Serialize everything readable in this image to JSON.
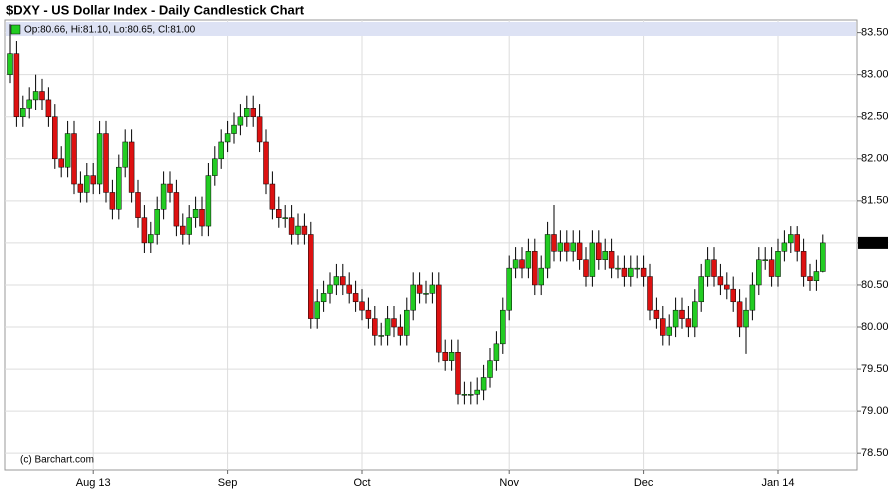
{
  "chart_data": {
    "type": "candlestick",
    "title": "$DXY - US Dollar Index - Daily Candlestick Chart",
    "ohlc_label": "Op:80.66, Hi:81.10, Lo:80.65, Cl:81.00",
    "credit": "(c) Barchart.com",
    "last_value_label": "81.00",
    "up_color": "#22cc22",
    "down_color": "#dd1111",
    "grid": true,
    "ylim": [
      78.3,
      83.65
    ],
    "yticks": [
      {
        "value": 78.5,
        "label": "78.50"
      },
      {
        "value": 79,
        "label": "79.00"
      },
      {
        "value": 79.5,
        "label": "79.50"
      },
      {
        "value": 80,
        "label": "80.00"
      },
      {
        "value": 80.5,
        "label": "80.50"
      },
      {
        "value": 81,
        "label": "81.00"
      },
      {
        "value": 81.5,
        "label": "81.50"
      },
      {
        "value": 82,
        "label": "82.00"
      },
      {
        "value": 82.5,
        "label": "82.50"
      },
      {
        "value": 83,
        "label": "83.00"
      },
      {
        "value": 83.5,
        "label": "83.50"
      }
    ],
    "categories": [
      null,
      null,
      null,
      null,
      null,
      null,
      null,
      null,
      null,
      null,
      null,
      null,
      null,
      "Aug 13",
      null,
      null,
      null,
      null,
      null,
      null,
      null,
      null,
      null,
      null,
      null,
      null,
      null,
      null,
      null,
      null,
      null,
      null,
      null,
      null,
      "Sep",
      null,
      null,
      null,
      null,
      null,
      null,
      null,
      null,
      null,
      null,
      null,
      null,
      null,
      null,
      null,
      null,
      null,
      null,
      null,
      null,
      "Oct",
      null,
      null,
      null,
      null,
      null,
      null,
      null,
      null,
      null,
      null,
      null,
      null,
      null,
      null,
      null,
      null,
      null,
      null,
      null,
      null,
      null,
      null,
      "Nov",
      null,
      null,
      null,
      null,
      null,
      null,
      null,
      null,
      null,
      null,
      null,
      null,
      null,
      null,
      null,
      null,
      null,
      null,
      null,
      null,
      "Dec",
      null,
      null,
      null,
      null,
      null,
      null,
      null,
      null,
      null,
      null,
      null,
      null,
      null,
      null,
      null,
      null,
      null,
      null,
      null,
      null,
      "Jan 14",
      null,
      null,
      null,
      null,
      null,
      null,
      null
    ],
    "open": [
      83.0,
      83.25,
      82.5,
      82.6,
      82.7,
      82.8,
      82.7,
      82.5,
      82.0,
      81.9,
      82.3,
      81.7,
      81.6,
      81.8,
      81.7,
      82.3,
      81.6,
      81.4,
      81.9,
      82.2,
      81.6,
      81.3,
      81.0,
      81.1,
      81.4,
      81.7,
      81.6,
      81.2,
      81.1,
      81.3,
      81.4,
      81.2,
      81.8,
      82.0,
      82.2,
      82.3,
      82.4,
      82.5,
      82.6,
      82.5,
      82.2,
      81.7,
      81.4,
      81.3,
      81.3,
      81.1,
      81.2,
      81.1,
      80.1,
      80.3,
      80.4,
      80.5,
      80.6,
      80.5,
      80.4,
      80.3,
      80.2,
      80.1,
      79.9,
      79.9,
      80.1,
      80.0,
      79.9,
      80.2,
      80.5,
      80.4,
      80.4,
      80.5,
      79.7,
      79.6,
      79.7,
      79.2,
      79.2,
      79.2,
      79.25,
      79.4,
      79.6,
      79.8,
      80.2,
      80.7,
      80.8,
      80.7,
      80.9,
      80.5,
      80.7,
      81.1,
      80.9,
      81.0,
      80.9,
      81.0,
      80.8,
      80.6,
      81.0,
      80.8,
      80.9,
      80.7,
      80.7,
      80.6,
      80.7,
      80.7,
      80.6,
      80.2,
      80.1,
      79.9,
      80.0,
      80.2,
      80.1,
      80.0,
      80.3,
      80.6,
      80.8,
      80.6,
      80.5,
      80.45,
      80.3,
      80.0,
      80.2,
      80.5,
      80.8,
      80.8,
      80.6,
      80.9,
      81.0,
      81.1,
      80.9,
      80.6,
      80.55,
      80.66
    ],
    "close": [
      83.25,
      82.5,
      82.6,
      82.7,
      82.8,
      82.7,
      82.5,
      82.0,
      81.9,
      82.3,
      81.7,
      81.6,
      81.8,
      81.7,
      82.3,
      81.6,
      81.4,
      81.9,
      82.2,
      81.6,
      81.3,
      81.0,
      81.1,
      81.4,
      81.7,
      81.6,
      81.2,
      81.1,
      81.3,
      81.4,
      81.2,
      81.8,
      82.0,
      82.2,
      82.3,
      82.4,
      82.5,
      82.6,
      82.5,
      82.2,
      81.7,
      81.4,
      81.3,
      81.3,
      81.1,
      81.2,
      81.1,
      80.1,
      80.3,
      80.4,
      80.5,
      80.6,
      80.5,
      80.4,
      80.3,
      80.2,
      80.1,
      79.9,
      79.9,
      80.1,
      80.0,
      79.9,
      80.2,
      80.5,
      80.4,
      80.4,
      80.5,
      79.7,
      79.6,
      79.7,
      79.2,
      79.2,
      79.2,
      79.25,
      79.4,
      79.6,
      79.8,
      80.2,
      80.7,
      80.8,
      80.7,
      80.9,
      80.5,
      80.7,
      81.1,
      80.9,
      81.0,
      80.9,
      81.0,
      80.8,
      80.6,
      81.0,
      80.8,
      80.9,
      80.7,
      80.7,
      80.6,
      80.7,
      80.7,
      80.6,
      80.2,
      80.1,
      79.9,
      80.0,
      80.2,
      80.1,
      80.0,
      80.3,
      80.6,
      80.8,
      80.6,
      80.5,
      80.45,
      80.3,
      80.0,
      80.2,
      80.5,
      80.8,
      80.8,
      80.6,
      80.9,
      81.0,
      81.1,
      80.9,
      80.6,
      80.55,
      80.66,
      81.0
    ],
    "high": [
      83.6,
      83.4,
      82.75,
      82.85,
      83.0,
      82.95,
      82.85,
      82.65,
      82.15,
      82.45,
      82.45,
      81.85,
      81.95,
      81.95,
      82.45,
      82.45,
      81.75,
      82.05,
      82.35,
      82.35,
      81.75,
      81.45,
      81.25,
      81.55,
      81.85,
      81.85,
      81.75,
      81.35,
      81.45,
      81.55,
      81.55,
      81.95,
      82.15,
      82.35,
      82.45,
      82.55,
      82.65,
      82.75,
      82.75,
      82.65,
      82.35,
      81.85,
      81.55,
      81.45,
      81.45,
      81.35,
      81.35,
      81.25,
      80.45,
      80.55,
      80.65,
      80.75,
      80.75,
      80.65,
      80.55,
      80.45,
      80.35,
      80.25,
      80.05,
      80.25,
      80.25,
      80.15,
      80.35,
      80.65,
      80.65,
      80.55,
      80.65,
      80.65,
      79.85,
      79.85,
      79.85,
      79.35,
      79.35,
      79.4,
      79.55,
      79.75,
      79.95,
      80.35,
      80.85,
      80.95,
      80.95,
      81.05,
      81.05,
      80.85,
      81.25,
      81.45,
      81.15,
      81.15,
      81.15,
      81.15,
      80.95,
      81.15,
      81.15,
      81.05,
      81.05,
      80.85,
      80.85,
      80.85,
      80.85,
      80.85,
      80.75,
      80.35,
      80.25,
      80.15,
      80.35,
      80.35,
      80.25,
      80.45,
      80.75,
      80.95,
      80.95,
      80.75,
      80.65,
      80.6,
      80.45,
      80.35,
      80.65,
      80.95,
      80.95,
      80.95,
      81.05,
      81.15,
      81.2,
      81.2,
      81.05,
      80.75,
      80.8,
      81.1
    ],
    "low": [
      82.9,
      82.38,
      82.38,
      82.48,
      82.58,
      82.58,
      82.38,
      81.88,
      81.78,
      81.78,
      81.58,
      81.48,
      81.48,
      81.58,
      81.58,
      81.48,
      81.28,
      81.28,
      81.78,
      81.48,
      81.18,
      80.88,
      80.88,
      80.98,
      81.28,
      81.48,
      81.08,
      80.98,
      80.98,
      81.18,
      81.08,
      81.08,
      81.68,
      81.88,
      82.08,
      82.18,
      82.28,
      82.38,
      82.38,
      82.08,
      81.58,
      81.28,
      81.18,
      81.18,
      80.98,
      80.98,
      80.98,
      79.98,
      79.98,
      80.18,
      80.28,
      80.38,
      80.38,
      80.28,
      80.18,
      80.08,
      79.98,
      79.78,
      79.78,
      79.78,
      79.88,
      79.78,
      79.78,
      80.08,
      80.28,
      80.28,
      80.28,
      79.58,
      79.48,
      79.48,
      79.08,
      79.08,
      79.08,
      79.08,
      79.13,
      79.28,
      79.48,
      79.68,
      80.08,
      80.58,
      80.58,
      80.58,
      80.38,
      80.38,
      80.58,
      80.78,
      80.78,
      80.78,
      80.78,
      80.68,
      80.48,
      80.48,
      80.68,
      80.68,
      80.58,
      80.58,
      80.48,
      80.48,
      80.58,
      80.48,
      80.08,
      79.98,
      79.78,
      79.78,
      79.88,
      79.98,
      79.88,
      79.88,
      80.18,
      80.48,
      80.48,
      80.38,
      80.33,
      80.18,
      79.88,
      79.68,
      80.08,
      80.38,
      80.68,
      80.48,
      80.48,
      80.78,
      80.88,
      80.78,
      80.48,
      80.43,
      80.43,
      80.65
    ]
  }
}
